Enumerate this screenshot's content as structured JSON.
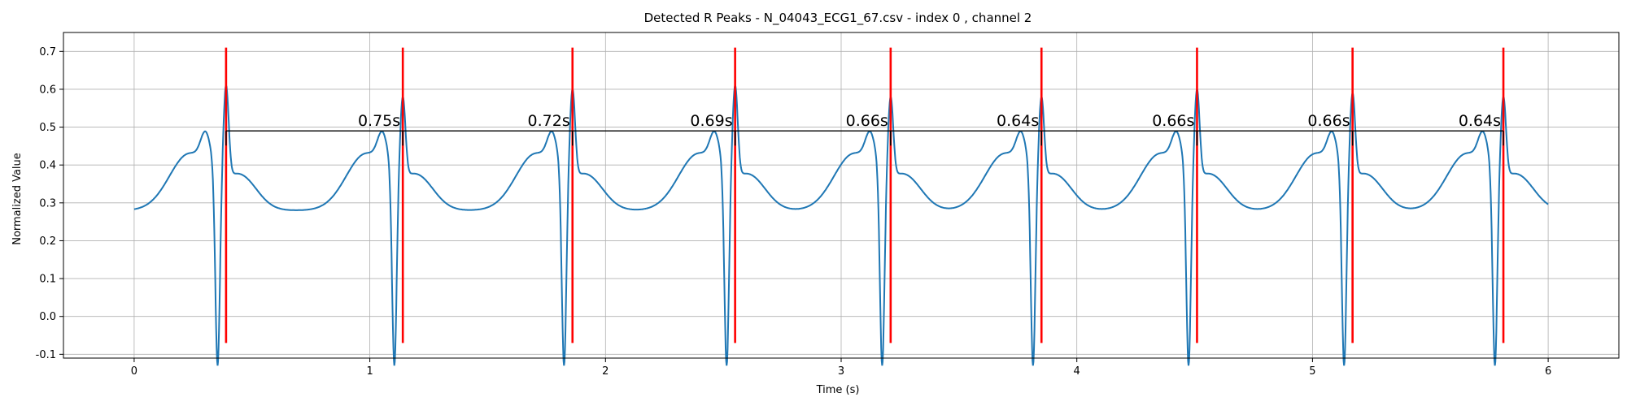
{
  "chart_data": {
    "type": "line",
    "title": "Detected R Peaks - N_04043_ECG1_67.csv - index 0 , channel 2",
    "xlabel": "Time (s)",
    "ylabel": "Normalized Value",
    "xlim": [
      -0.3,
      6.3
    ],
    "ylim": [
      -0.11,
      0.75
    ],
    "grid": true,
    "x_ticks": [
      0,
      1,
      2,
      3,
      4,
      5,
      6
    ],
    "y_ticks": [
      -0.1,
      0.0,
      0.1,
      0.2,
      0.3,
      0.4,
      0.5,
      0.6,
      0.7
    ],
    "y_tick_labels": [
      "-0.1",
      "0.0",
      "0.1",
      "0.2",
      "0.3",
      "0.4",
      "0.5",
      "0.6",
      "0.7"
    ],
    "colors": {
      "signal": "#1f77b4",
      "peaks": "#ff0000",
      "intervals": "#000000"
    },
    "signal_start": 0.0,
    "signal_end": 6.0,
    "signal_start_value": 0.28,
    "r_peaks": [
      0.39,
      1.14,
      1.86,
      2.55,
      3.21,
      3.85,
      4.51,
      5.17,
      5.81
    ],
    "r_peak_values": [
      0.6,
      0.57,
      0.59,
      0.6,
      0.57,
      0.57,
      0.59,
      0.58,
      0.57
    ],
    "peak_line_range": [
      -0.07,
      0.71
    ],
    "interval_line_y": 0.49,
    "rr_intervals": [
      {
        "label": "0.75s"
      },
      {
        "label": "0.72s"
      },
      {
        "label": "0.69s"
      },
      {
        "label": "0.66s"
      },
      {
        "label": "0.64s"
      },
      {
        "label": "0.66s"
      },
      {
        "label": "0.66s"
      },
      {
        "label": "0.64s"
      }
    ]
  }
}
